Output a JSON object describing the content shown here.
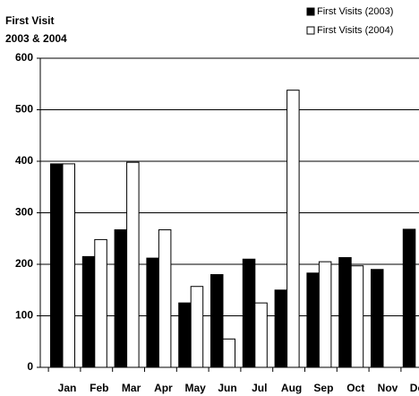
{
  "chart_data": {
    "type": "bar",
    "title": "First Visit",
    "subtitle": "2003 & 2004",
    "categories": [
      "Jan",
      "Feb",
      "Mar",
      "Apr",
      "May",
      "Jun",
      "Jul",
      "Aug",
      "Sep",
      "Oct",
      "Nov",
      "Dec"
    ],
    "series": [
      {
        "name": "First Visits (2003)",
        "color": "#000000",
        "values": [
          395,
          215,
          267,
          212,
          125,
          180,
          210,
          150,
          183,
          213,
          190,
          268
        ]
      },
      {
        "name": "First Visits (2004)",
        "color": "#ffffff",
        "values": [
          395,
          248,
          398,
          267,
          157,
          55,
          125,
          538,
          205,
          197,
          null,
          null
        ]
      }
    ],
    "ylim": [
      0,
      600
    ],
    "yticks": [
      0,
      100,
      200,
      300,
      400,
      500,
      600
    ],
    "grid": true,
    "legend": "top-right"
  }
}
